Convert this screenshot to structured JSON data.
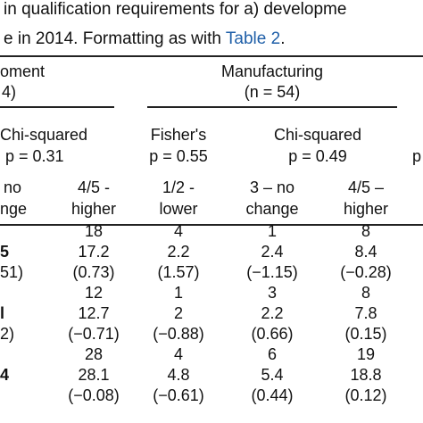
{
  "caption": {
    "line1": "in qualification requirements for a) developme",
    "line2": {
      "before": "e in 2014. Formatting as with ",
      "link": "Table 2",
      "after": "."
    }
  },
  "groups": [
    {
      "label": "oment",
      "n": "4)"
    },
    {
      "label": "Manufacturing",
      "n": "(n = 54)"
    }
  ],
  "tests": [
    {
      "name": "Chi-squared",
      "p": "p = 0.31"
    },
    {
      "name": "Fisher's",
      "p": "p = 0.55"
    },
    {
      "name": "Chi-squared",
      "p": "p = 0.49"
    },
    {
      "p": "p"
    }
  ],
  "columns": [
    [
      "no",
      "nge"
    ],
    [
      "4/5 -",
      "higher"
    ],
    [
      "1/2 -",
      "lower"
    ],
    [
      "3 – no",
      "change"
    ],
    [
      "4/5 –",
      "higher"
    ]
  ],
  "rows": [
    {
      "cells": [
        "18",
        "4",
        "1",
        "8"
      ]
    },
    {
      "left": "5",
      "cells": [
        "17.2",
        "2.2",
        "2.4",
        "8.4"
      ]
    },
    {
      "left": "51)",
      "cells": [
        "(0.73)",
        "(1.57)",
        "(−1.15)",
        "(−0.28)"
      ]
    },
    {
      "cells": [
        "12",
        "1",
        "3",
        "8"
      ]
    },
    {
      "left": "l",
      "cells": [
        "12.7",
        "2",
        "2.2",
        "7.8"
      ]
    },
    {
      "left": "2)",
      "cells": [
        "(−0.71)",
        "(−0.88)",
        "(0.66)",
        "(0.15)"
      ]
    },
    {
      "cells": [
        "28",
        "4",
        "6",
        "19"
      ]
    },
    {
      "left": "4",
      "cells": [
        "28.1",
        "4.8",
        "5.4",
        "18.8"
      ]
    },
    {
      "cells": [
        "(−0.08)",
        "(−0.61)",
        "(0.44)",
        "(0.12)"
      ]
    }
  ]
}
